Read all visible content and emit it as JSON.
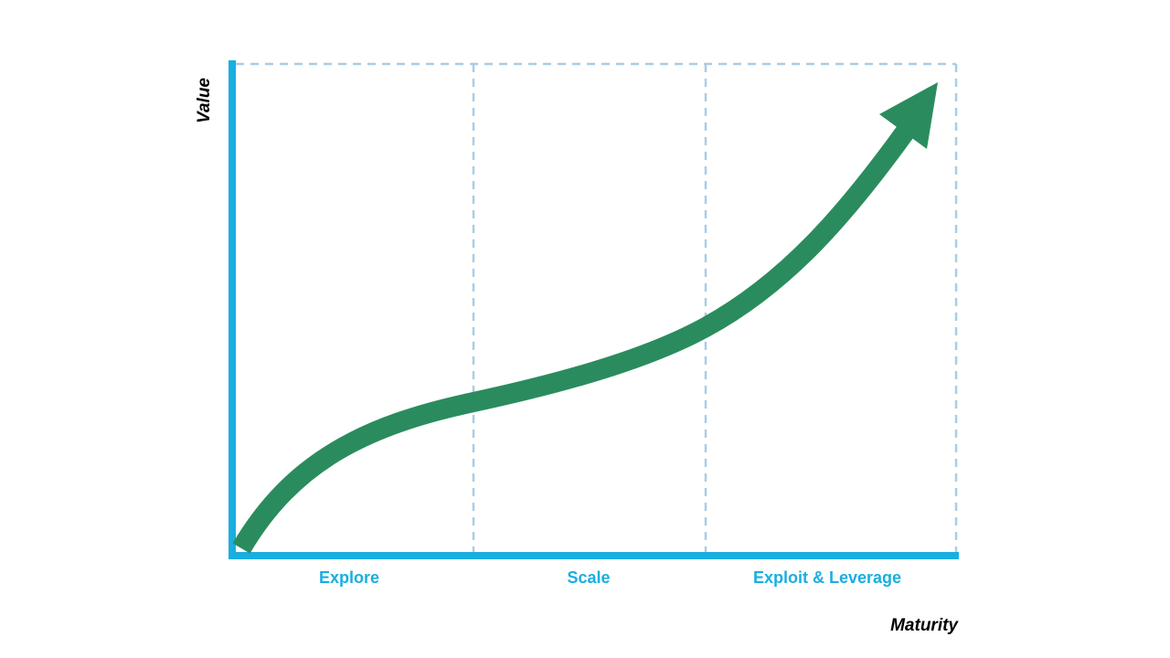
{
  "diagram": {
    "y_axis_title": "Value",
    "x_axis_title": "Maturity",
    "phases": [
      {
        "label": "Explore"
      },
      {
        "label": "Scale"
      },
      {
        "label": "Exploit & Leverage"
      }
    ],
    "colors": {
      "axis": "#1aaee0",
      "divider": "#a9cde6",
      "curve": "#2a8c5e",
      "phase_label": "#1aaee0",
      "axis_title": "#000000"
    },
    "curve_shape": "s-curve-arrow-up-right"
  }
}
